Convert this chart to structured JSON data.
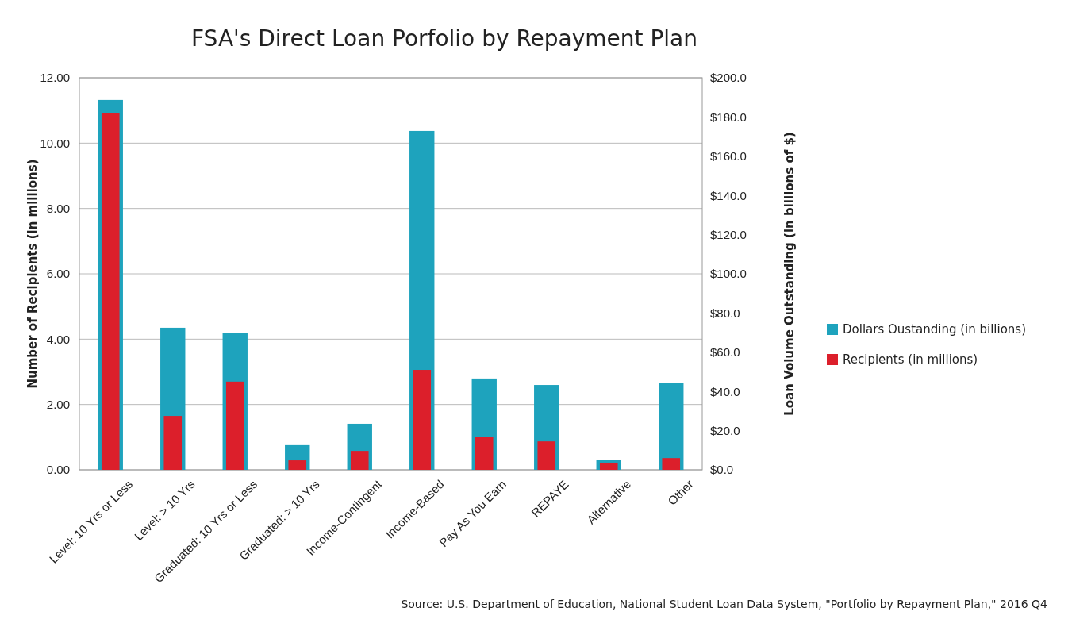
{
  "chart_data": {
    "type": "bar",
    "title": "FSA's Direct Loan Porfolio by Repayment Plan",
    "ylabel": "Number of Recipients (in millions)",
    "y2label": "Loan Volume Outstanding (in billions of $)",
    "categories": [
      "Level:  10 Yrs or Less",
      "Level: > 10 Yrs",
      "Graduated: 10 Yrs or Less",
      "Graduated: > 10 Yrs",
      "Income-Contingent",
      "Income-Based",
      "Pay As You Earn",
      "REPAYE",
      "Alternative",
      "Other"
    ],
    "series": [
      {
        "name": "Dollars Oustanding (in billions)",
        "color": "#1ea3bd",
        "axis": "y2",
        "values": [
          188.7,
          72.5,
          70.0,
          12.6,
          23.5,
          172.9,
          46.6,
          43.3,
          5.0,
          44.5
        ]
      },
      {
        "name": "Recipients (in millions)",
        "color": "#dc1f2b",
        "axis": "y",
        "values": [
          10.93,
          1.65,
          2.7,
          0.29,
          0.58,
          3.06,
          1.0,
          0.87,
          0.22,
          0.36
        ]
      }
    ],
    "ylim": [
      0,
      12
    ],
    "yticks": [
      {
        "value": 0,
        "label": "0.00"
      },
      {
        "value": 2,
        "label": "2.00"
      },
      {
        "value": 4,
        "label": "4.00"
      },
      {
        "value": 6,
        "label": "6.00"
      },
      {
        "value": 8,
        "label": "8.00"
      },
      {
        "value": 10,
        "label": "10.00"
      },
      {
        "value": 12,
        "label": "12.00"
      }
    ],
    "y2lim": [
      0,
      200
    ],
    "y2ticks": [
      {
        "value": 0,
        "label": "$0.0"
      },
      {
        "value": 20,
        "label": "$20.0"
      },
      {
        "value": 40,
        "label": "$40.0"
      },
      {
        "value": 60,
        "label": "$60.0"
      },
      {
        "value": 80,
        "label": "$80.0"
      },
      {
        "value": 100,
        "label": "$100.0"
      },
      {
        "value": 120,
        "label": "$120.0"
      },
      {
        "value": 140,
        "label": "$140.0"
      },
      {
        "value": 160,
        "label": "$160.0"
      },
      {
        "value": 180,
        "label": "$180.0"
      },
      {
        "value": 200,
        "label": "$200.0"
      }
    ],
    "grid": "y",
    "legend": "right",
    "annotations": [
      "Source: U.S. Department of Education, National Student Loan Data System, \"Portfolio by Repayment Plan,\" 2016 Q4"
    ]
  }
}
